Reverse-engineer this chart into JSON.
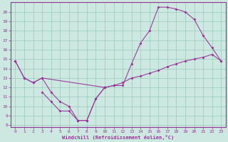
{
  "xlabel": "Windchill (Refroidissement éolien,°C)",
  "bg_color": "#cce8e0",
  "line_color": "#993399",
  "grid_color": "#99ccbb",
  "xlim": [
    -0.5,
    23.5
  ],
  "ylim": [
    7.8,
    21.0
  ],
  "xticks": [
    0,
    1,
    2,
    3,
    4,
    5,
    6,
    7,
    8,
    9,
    10,
    11,
    12,
    13,
    14,
    15,
    16,
    17,
    18,
    19,
    20,
    21,
    22,
    23
  ],
  "yticks": [
    8,
    9,
    10,
    11,
    12,
    13,
    14,
    15,
    16,
    17,
    18,
    19,
    20
  ],
  "curve1_x": [
    0,
    1,
    2,
    3,
    4,
    5,
    6,
    7,
    8,
    9,
    10,
    11,
    12,
    13,
    14,
    15,
    16,
    17,
    18,
    19,
    20,
    21,
    22,
    23
  ],
  "curve1_y": [
    14.8,
    13.0,
    12.5,
    13.0,
    11.5,
    10.5,
    10.0,
    8.5,
    8.5,
    10.8,
    12.0,
    12.2,
    12.2,
    14.5,
    16.7,
    18.0,
    20.5,
    20.5,
    20.3,
    20.0,
    19.2,
    17.5,
    16.2,
    14.8
  ],
  "curve2_x": [
    0,
    1,
    2,
    3,
    10,
    11,
    12,
    13,
    14,
    15,
    16,
    17,
    18,
    19,
    20,
    21,
    22,
    23
  ],
  "curve2_y": [
    14.8,
    13.0,
    12.5,
    13.0,
    12.0,
    12.2,
    12.5,
    13.0,
    13.2,
    13.5,
    13.8,
    14.2,
    14.5,
    14.8,
    15.0,
    15.2,
    15.5,
    14.8
  ],
  "curve3_x": [
    3,
    4,
    5,
    6,
    7,
    8,
    9,
    10
  ],
  "curve3_y": [
    11.5,
    10.5,
    9.5,
    9.5,
    8.5,
    8.5,
    10.8,
    12.0
  ]
}
